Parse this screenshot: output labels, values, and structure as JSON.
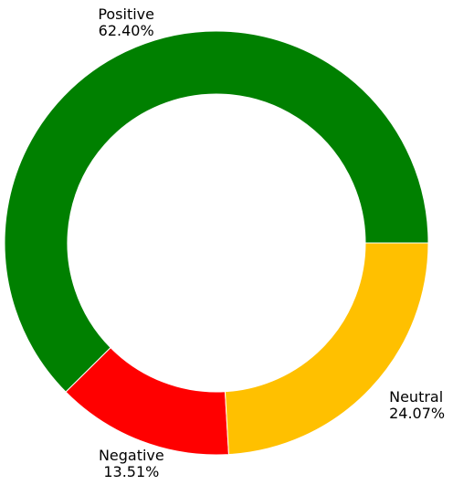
{
  "chart_data": {
    "type": "donut",
    "categories": [
      "Positive",
      "Negative",
      "Neutral"
    ],
    "values": [
      62.4,
      13.51,
      24.07
    ],
    "value_labels": [
      "62.40%",
      "13.51%",
      "24.07%"
    ],
    "colors": [
      "#008000",
      "#ff0000",
      "#ffc000"
    ]
  }
}
